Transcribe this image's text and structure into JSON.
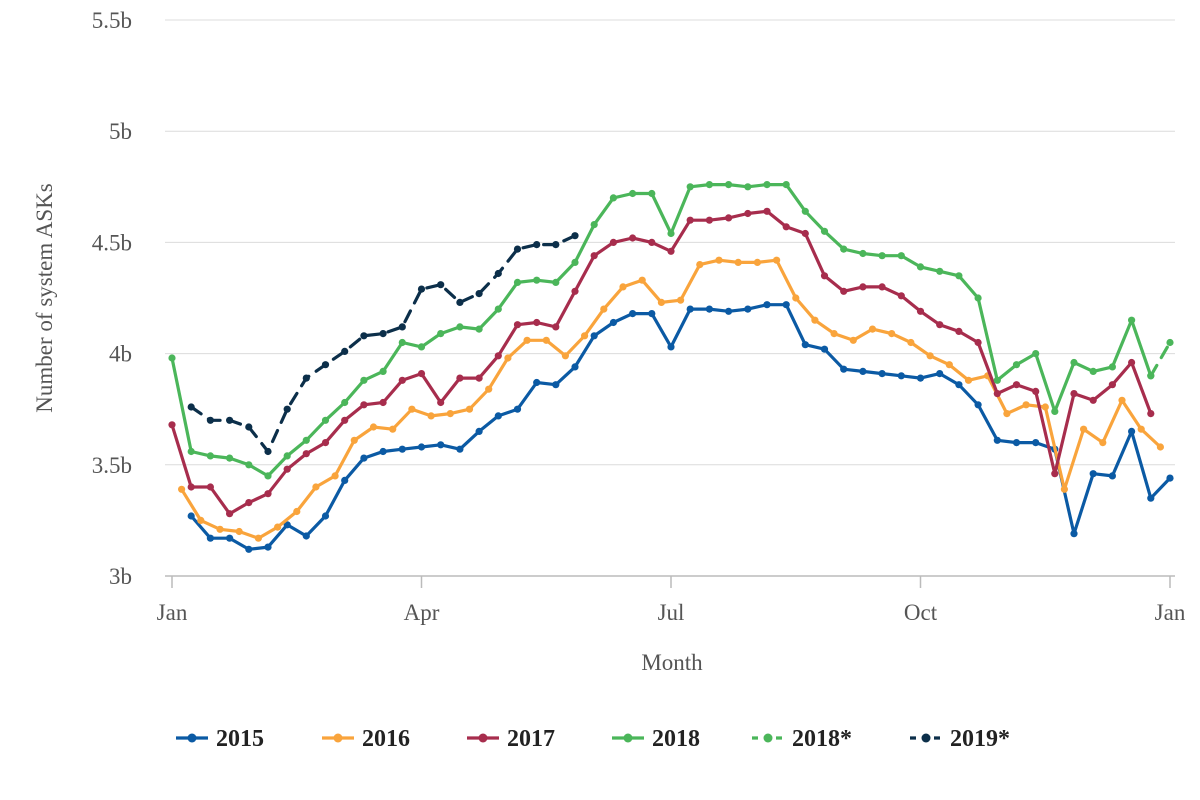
{
  "chart_data": {
    "type": "line",
    "xlabel": "Month",
    "ylabel": "Number of system ASKs",
    "x_ticks": [
      "Jan",
      "Apr",
      "Jul",
      "Oct",
      "Jan"
    ],
    "y_ticks": [
      "3b",
      "3.5b",
      "4b",
      "4.5b",
      "5b",
      "5.5b"
    ],
    "ylim": [
      3.0,
      5.5
    ],
    "xlim_weeks": [
      0,
      52
    ],
    "grid": "horizontal",
    "legend_placement": "bottom",
    "series": [
      {
        "name": "2015",
        "color": "#0b5aa4",
        "dashed": false,
        "start_week": 1,
        "values": [
          3.27,
          3.17,
          3.17,
          3.12,
          3.13,
          3.23,
          3.18,
          3.27,
          3.43,
          3.53,
          3.56,
          3.57,
          3.58,
          3.59,
          3.57,
          3.65,
          3.72,
          3.75,
          3.87,
          3.86,
          3.94,
          4.08,
          4.14,
          4.18,
          4.18,
          4.03,
          4.2,
          4.2,
          4.19,
          4.2,
          4.22,
          4.22,
          4.04,
          4.02,
          3.93,
          3.92,
          3.91,
          3.9,
          3.89,
          3.91,
          3.86,
          3.77,
          3.61,
          3.6,
          3.6,
          3.57,
          3.19,
          3.46,
          3.45,
          3.65,
          3.35,
          3.44
        ]
      },
      {
        "name": "2016",
        "color": "#f9a43c",
        "dashed": false,
        "start_week": 0.5,
        "values": [
          3.39,
          3.25,
          3.21,
          3.2,
          3.17,
          3.22,
          3.29,
          3.4,
          3.45,
          3.61,
          3.67,
          3.66,
          3.75,
          3.72,
          3.73,
          3.75,
          3.84,
          3.98,
          4.06,
          4.06,
          3.99,
          4.08,
          4.2,
          4.3,
          4.33,
          4.23,
          4.24,
          4.4,
          4.42,
          4.41,
          4.41,
          4.42,
          4.25,
          4.15,
          4.09,
          4.06,
          4.11,
          4.09,
          4.05,
          3.99,
          3.95,
          3.88,
          3.9,
          3.73,
          3.77,
          3.76,
          3.39,
          3.66,
          3.6,
          3.79,
          3.66,
          3.58
        ]
      },
      {
        "name": "2017",
        "color": "#a72d4d",
        "dashed": false,
        "start_week": 0,
        "values": [
          3.68,
          3.4,
          3.4,
          3.28,
          3.33,
          3.37,
          3.48,
          3.55,
          3.6,
          3.7,
          3.77,
          3.78,
          3.88,
          3.91,
          3.78,
          3.89,
          3.89,
          3.99,
          4.13,
          4.14,
          4.12,
          4.28,
          4.44,
          4.5,
          4.52,
          4.5,
          4.46,
          4.6,
          4.6,
          4.61,
          4.63,
          4.64,
          4.57,
          4.54,
          4.35,
          4.28,
          4.3,
          4.3,
          4.26,
          4.19,
          4.13,
          4.1,
          4.05,
          3.82,
          3.86,
          3.83,
          3.46,
          3.82,
          3.79,
          3.86,
          3.96,
          3.73
        ]
      },
      {
        "name": "2018",
        "color": "#4bb65a",
        "dashed": false,
        "start_week": 0,
        "values": [
          3.98,
          3.56,
          3.54,
          3.53,
          3.5,
          3.45,
          3.54,
          3.61,
          3.7,
          3.78,
          3.88,
          3.92,
          4.05,
          4.03,
          4.09,
          4.12,
          4.11,
          4.2,
          4.32,
          4.33,
          4.32,
          4.41,
          4.58,
          4.7,
          4.72,
          4.72,
          4.54,
          4.75,
          4.76,
          4.76,
          4.75,
          4.76,
          4.76,
          4.64,
          4.55,
          4.47,
          4.45,
          4.44,
          4.44,
          4.39,
          4.37,
          4.35,
          4.25,
          3.88,
          3.95,
          4.0,
          3.74,
          3.96,
          3.92,
          3.94,
          4.15,
          3.9
        ]
      },
      {
        "name": "2018*",
        "color": "#4bb65a",
        "dashed": true,
        "start_week": 51,
        "values": [
          3.9,
          4.05
        ]
      },
      {
        "name": "2019*",
        "color": "#0c2f4a",
        "dashed": true,
        "start_week": 1,
        "values": [
          3.76,
          3.7,
          3.7,
          3.67,
          3.56,
          3.75,
          3.89,
          3.95,
          4.01,
          4.08,
          4.09,
          4.12,
          4.29,
          4.31,
          4.23,
          4.27,
          4.36,
          4.47,
          4.49,
          4.49,
          4.53
        ]
      }
    ]
  }
}
